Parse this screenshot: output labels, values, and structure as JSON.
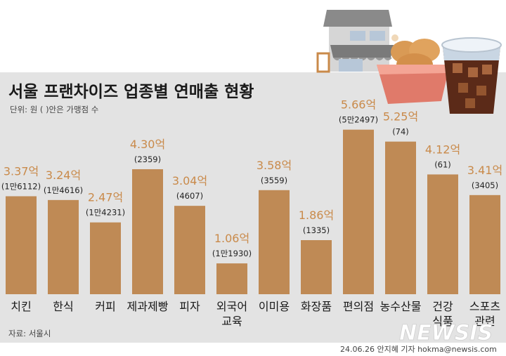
{
  "header": {
    "title": "서울 프랜차이즈 업종별 연매출 현황",
    "unit_note": "단위: 원 ( )안은 가맹점 수"
  },
  "chart_data": {
    "type": "bar",
    "title": "서울 프랜차이즈 업종별 연매출 현황",
    "unit": "단위: 원 ( )안은 가맹점 수",
    "categories": [
      "치킨",
      "한식",
      "커피",
      "제과제빵",
      "피자",
      "외국어 교육",
      "이미용",
      "화장품",
      "편의점",
      "농수산물",
      "건강 식품",
      "스포츠 관련"
    ],
    "values": [
      3.37,
      3.24,
      2.47,
      4.3,
      3.04,
      1.06,
      3.58,
      1.86,
      5.66,
      5.25,
      4.12,
      3.41
    ],
    "value_labels": [
      "3.37억",
      "3.24억",
      "2.47억",
      "4.30억",
      "3.04억",
      "1.06억",
      "3.58억",
      "1.86억",
      "5.66억",
      "5.25억",
      "4.12억",
      "3.41억"
    ],
    "store_counts": [
      "(1만6112)",
      "(1만4616)",
      "(1만4231)",
      "(2359)",
      "(4607)",
      "(1만1930)",
      "(3559)",
      "(1335)",
      "(5만2497)",
      "(74)",
      "(61)",
      "(3405)"
    ],
    "series": [
      {
        "values": [
          3.37,
          3.24,
          2.47,
          4.3,
          3.04,
          1.06,
          3.58,
          1.86,
          5.66,
          5.25,
          4.12,
          3.41
        ]
      }
    ],
    "bar_color": "#bf8a55",
    "value_color": "#c98a4a",
    "background_color": "#e3e3e3",
    "ylim": [
      0,
      6
    ],
    "grid": false,
    "legend": "none"
  },
  "footer": {
    "source": "자료: 서울시",
    "credit": "24.06.26 안지혜 기자 hokma@newsis.com",
    "watermark": "NEWSIS"
  },
  "illustration": {
    "icons": [
      "store-icon",
      "fried-chicken-icon",
      "iced-coffee-icon"
    ]
  }
}
